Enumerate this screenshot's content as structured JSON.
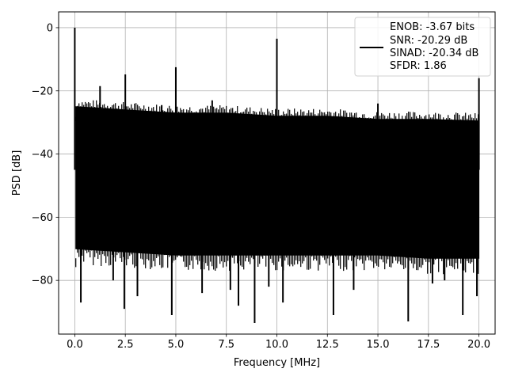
{
  "chart_data": {
    "type": "line",
    "xlabel": "Frequency [MHz]",
    "ylabel": "PSD [dB]",
    "xlim": [
      -0.8,
      20.8
    ],
    "ylim": [
      -97,
      5
    ],
    "xticks": [
      0.0,
      2.5,
      5.0,
      7.5,
      10.0,
      12.5,
      15.0,
      17.5,
      20.0
    ],
    "xtick_labels": [
      "0.0",
      "2.5",
      "5.0",
      "7.5",
      "10.0",
      "12.5",
      "15.0",
      "17.5",
      "20.0"
    ],
    "yticks": [
      0,
      -20,
      -40,
      -60,
      -80
    ],
    "ytick_labels": [
      "0",
      "−20",
      "−40",
      "−60",
      "−80"
    ],
    "grid": true,
    "legend_position": "top-right",
    "series": [
      {
        "name": "ENOB: -3.67 bits\nSNR: -20.29 dB\nSINAD: -20.34 dB\nSFDR: 1.86",
        "legend_lines": [
          "ENOB: -3.67 bits",
          "SNR: -20.29 dB",
          "SINAD: -20.34 dB",
          "SFDR: 1.86"
        ],
        "color": "#000000",
        "noise_floor_band": {
          "x": [
            0.05,
            2.5,
            5.0,
            7.5,
            10.0,
            12.5,
            15.0,
            17.5,
            20.0
          ],
          "upper": [
            -25,
            -26,
            -27,
            -27,
            -28,
            -28,
            -29,
            -29,
            -29.5
          ],
          "lower": [
            -70,
            -71,
            -72,
            -72,
            -72,
            -72,
            -72,
            -73,
            -73
          ]
        },
        "spurs": [
          {
            "x": 0.0,
            "y": 0
          },
          {
            "x": 1.25,
            "y": -18.5
          },
          {
            "x": 2.5,
            "y": -14.8
          },
          {
            "x": 4.3,
            "y": -24.5
          },
          {
            "x": 5.0,
            "y": -12.5
          },
          {
            "x": 6.8,
            "y": -23.0
          },
          {
            "x": 10.0,
            "y": -3.5
          },
          {
            "x": 15.0,
            "y": -24.0
          },
          {
            "x": 20.0,
            "y": -16.0
          }
        ],
        "dips": [
          {
            "x": 0.3,
            "y": -87
          },
          {
            "x": 1.9,
            "y": -80
          },
          {
            "x": 2.45,
            "y": -89
          },
          {
            "x": 3.1,
            "y": -85
          },
          {
            "x": 4.8,
            "y": -91
          },
          {
            "x": 6.3,
            "y": -84
          },
          {
            "x": 7.7,
            "y": -83
          },
          {
            "x": 8.1,
            "y": -88
          },
          {
            "x": 8.9,
            "y": -93.5
          },
          {
            "x": 9.6,
            "y": -82
          },
          {
            "x": 10.3,
            "y": -87
          },
          {
            "x": 12.8,
            "y": -91
          },
          {
            "x": 13.8,
            "y": -83
          },
          {
            "x": 16.5,
            "y": -93
          },
          {
            "x": 17.7,
            "y": -81
          },
          {
            "x": 18.3,
            "y": -80
          },
          {
            "x": 19.2,
            "y": -91
          },
          {
            "x": 19.9,
            "y": -85
          }
        ]
      }
    ]
  }
}
